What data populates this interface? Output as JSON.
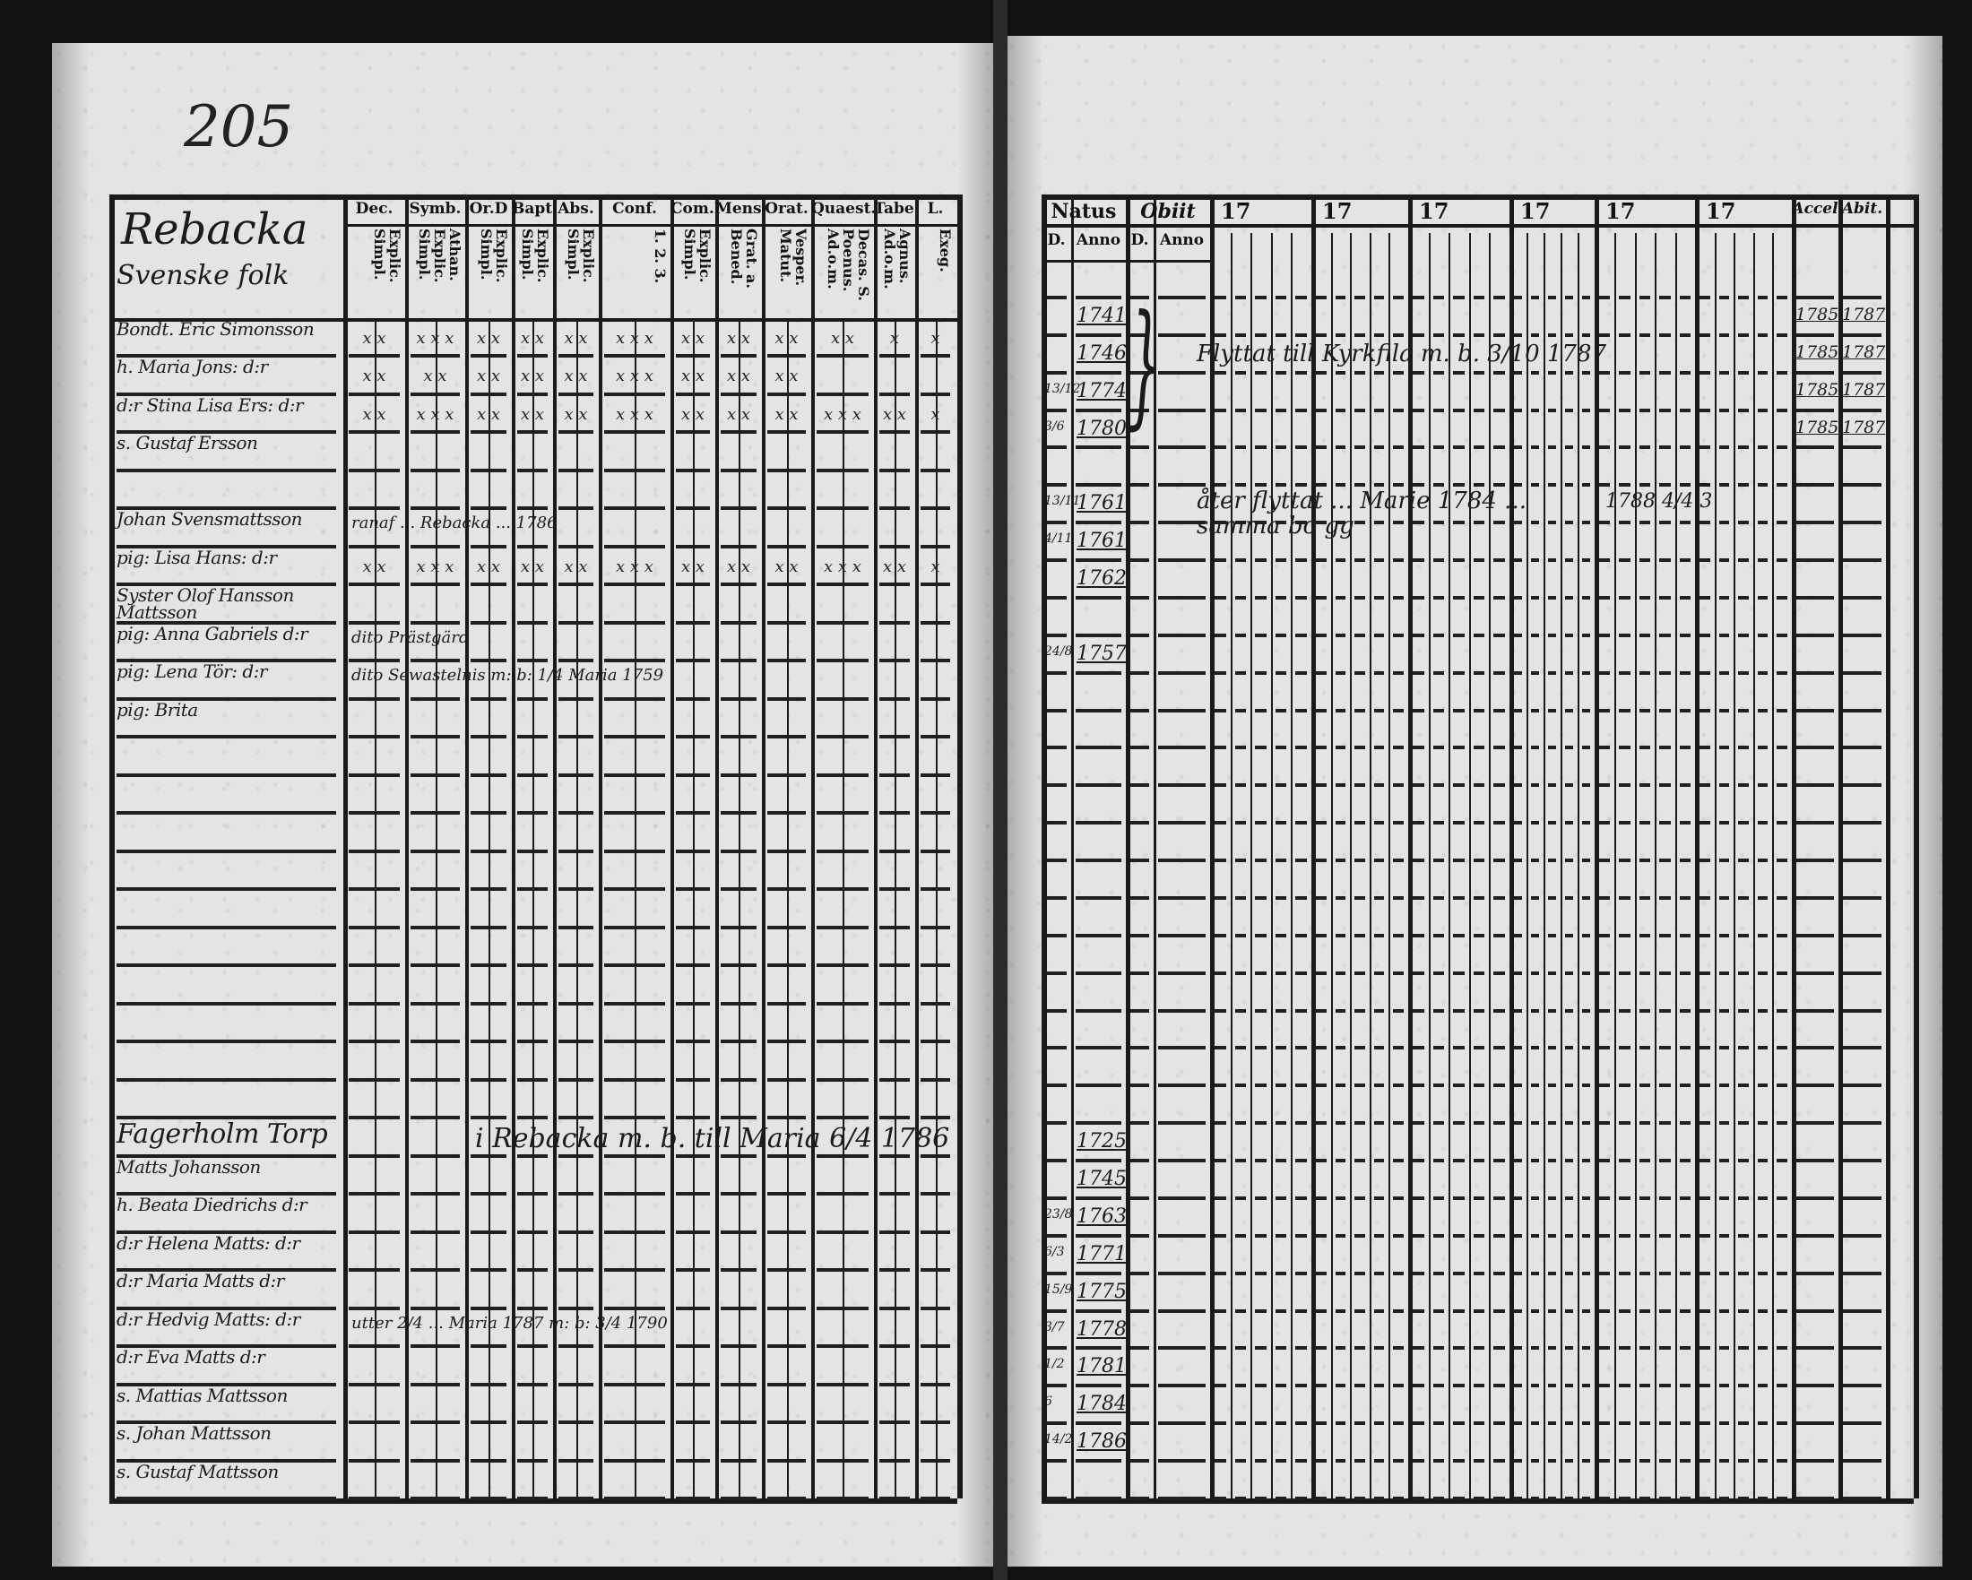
{
  "page_number": "205",
  "left_page": {
    "title": "Rebacka",
    "subtitle": "Svenske folk",
    "columns": [
      {
        "label": "Dec.",
        "sub": "Explic. Simpl."
      },
      {
        "label": "Symb.",
        "sub": "Athan. Explic. Simpl."
      },
      {
        "label": "Or.D",
        "sub": "Explic. Simpl."
      },
      {
        "label": "Bapt.",
        "sub": "Explic. Simpl."
      },
      {
        "label": "Abs.",
        "sub": "Explic. Simpl."
      },
      {
        "label": "Conf.",
        "sub": "1. 2. 3."
      },
      {
        "label": "Com.D",
        "sub": "Explic. Simpl."
      },
      {
        "label": "Mens.",
        "sub": "Grat. a. Bened."
      },
      {
        "label": "Orat.",
        "sub": "Vesper. Matut."
      },
      {
        "label": "Quaest.",
        "sub": "Decas. S. Poenus. Ad.o.m."
      },
      {
        "label": "Tabe.",
        "sub": "Agnus. Ad.o.m."
      },
      {
        "label": "L.",
        "sub": "Exeg."
      }
    ],
    "rows": [
      {
        "row": 0,
        "name": "Bondt. Eric Simonsson",
        "marks": [
          "x x",
          "x x x",
          "x x",
          "x x",
          "x x",
          "x x x",
          "x x",
          "x x",
          "x x",
          "x x",
          "x",
          "x"
        ]
      },
      {
        "row": 1,
        "name": "h. Maria Jons: d:r",
        "marks": [
          "x x",
          "x x",
          "x x",
          "x x",
          "x x",
          "x x x",
          "x x",
          "x x",
          "x x",
          "",
          "",
          ""
        ]
      },
      {
        "row": 2,
        "name": "d:r Stina Lisa Ers: d:r",
        "marks": [
          "x x",
          "x x x",
          "x x",
          "x x",
          "x x",
          "x x x",
          "x x",
          "x x",
          "x x",
          "x x x",
          "x x",
          "x"
        ]
      },
      {
        "row": 3,
        "name": "s. Gustaf Ersson",
        "marks": []
      },
      {
        "row": 5,
        "name": "Johan Svensmattsson",
        "note": "ranaf ... Rebacka ... 1786"
      },
      {
        "row": 6,
        "name": "pig: Lisa Hans: d:r",
        "marks": [
          "x x",
          "x x x",
          "x x",
          "x x",
          "x x",
          "x x x",
          "x x",
          "x x",
          "x x",
          "x x x",
          "x x",
          "x"
        ]
      },
      {
        "row": 7,
        "name": "Syster Olof Hansson Mattsson"
      },
      {
        "row": 8,
        "name": "pig: Anna Gabriels d:r",
        "note": "dito Prästgärd"
      },
      {
        "row": 9,
        "name": "pig: Lena Tör: d:r",
        "note": "dito Sewastelnis m: b: 1/4 Maria 1759"
      },
      {
        "row": 10,
        "name": "pig: Brita"
      },
      {
        "row": 21,
        "name": "Fagerholm Torp",
        "note": "i Rebacka m. b. till Maria 6/4 1786"
      },
      {
        "row": 22,
        "name": "Matts Johansson"
      },
      {
        "row": 23,
        "name": "h. Beata Diedrichs d:r"
      },
      {
        "row": 24,
        "name": "d:r Helena Matts: d:r"
      },
      {
        "row": 25,
        "name": "d:r Maria Matts d:r"
      },
      {
        "row": 26,
        "name": "d:r Hedvig Matts: d:r",
        "note": "utter 2/4 ... Maria 1787 m: b: 3/4 1790"
      },
      {
        "row": 27,
        "name": "d:r Eva Matts d:r"
      },
      {
        "row": 28,
        "name": "s. Mattias Mattsson"
      },
      {
        "row": 29,
        "name": "s. Johan Mattsson"
      },
      {
        "row": 30,
        "name": "s. Gustaf Mattsson"
      }
    ]
  },
  "right_page": {
    "natus": {
      "label": "Natus",
      "day": "D.",
      "year": "Anno"
    },
    "obiit": {
      "label": "Obiit",
      "day": "D.",
      "year": "Anno"
    },
    "year_groups": [
      "17",
      "17",
      "17",
      "17",
      "17",
      "17"
    ],
    "accel": "Accel",
    "abit": "Abit.",
    "rows": [
      {
        "row": 1,
        "day": "",
        "born": "1741",
        "accel": "1785",
        "abit": "1787"
      },
      {
        "row": 2,
        "day": "",
        "born": "1746",
        "accel": "1785",
        "abit": "1787"
      },
      {
        "row": 3,
        "day": "13/12",
        "born": "1774",
        "accel": "1785",
        "abit": "1787"
      },
      {
        "row": 4,
        "day": "3/6",
        "born": "1780",
        "accel": "1785",
        "abit": "1787"
      },
      {
        "row": 6,
        "day": "13/11",
        "born": "1761"
      },
      {
        "row": 7,
        "day": "4/11",
        "born": "1761"
      },
      {
        "row": 8,
        "day": "",
        "born": "1762"
      },
      {
        "row": 10,
        "day": "24/8",
        "born": "1757"
      },
      {
        "row": 23,
        "day": "",
        "born": "1725"
      },
      {
        "row": 24,
        "day": "",
        "born": "1745"
      },
      {
        "row": 25,
        "day": "23/8",
        "born": "1763"
      },
      {
        "row": 26,
        "day": "6/3",
        "born": "1771"
      },
      {
        "row": 27,
        "day": "15/9",
        "born": "1775"
      },
      {
        "row": 28,
        "day": "3/7",
        "born": "1778"
      },
      {
        "row": 29,
        "day": "1/2",
        "born": "1781"
      },
      {
        "row": 30,
        "day": "6",
        "born": "1784"
      },
      {
        "row": 31,
        "day": "14/2",
        "born": "1786"
      }
    ],
    "notes": [
      {
        "row": 2,
        "text": "Flyttat till Kyrkfila m. b. 3/10 1787"
      },
      {
        "row": 6,
        "text": "åter flyttat ... Marie 1784 ... samma bo gg"
      },
      {
        "row": 6,
        "text": "1788 4/4 3",
        "col": 5
      }
    ]
  }
}
